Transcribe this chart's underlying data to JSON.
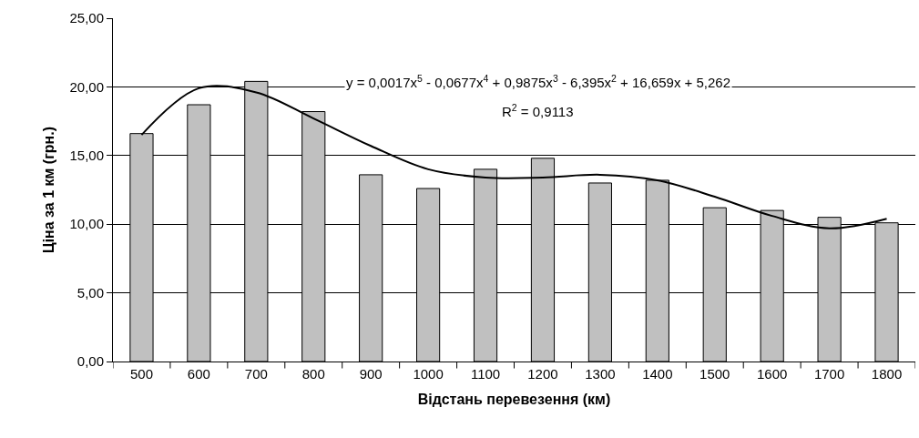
{
  "chart_data": {
    "type": "bar",
    "xlabel": "Відстань перевезення (км)",
    "ylabel": "Ціна за 1 км (грн.)",
    "categories": [
      "500",
      "600",
      "700",
      "800",
      "900",
      "1000",
      "1100",
      "1200",
      "1300",
      "1400",
      "1500",
      "1600",
      "1700",
      "1800"
    ],
    "series": [
      {
        "color": "#c0c0c0",
        "values": [
          16.6,
          18.7,
          20.4,
          18.2,
          13.6,
          12.6,
          14.0,
          14.8,
          13.0,
          13.2,
          11.2,
          11.0,
          10.5,
          10.1
        ]
      },
      {
        "type": "line",
        "color": "#000000",
        "marker": "none",
        "line_style": "solid",
        "values": [
          16.5,
          19.9,
          19.6,
          17.7,
          15.7,
          14.0,
          13.4,
          13.4,
          13.6,
          13.2,
          12.0,
          10.6,
          9.7,
          10.4
        ]
      }
    ],
    "ylim": [
      0,
      25
    ],
    "yticks": [
      {
        "value": 0,
        "label": "0,00"
      },
      {
        "value": 5,
        "label": "5,00"
      },
      {
        "value": 10,
        "label": "10,00"
      },
      {
        "value": 15,
        "label": "15,00"
      },
      {
        "value": 20,
        "label": "20,00"
      },
      {
        "value": 25,
        "label": "25,00"
      }
    ],
    "grid": "y",
    "legend": false,
    "annotations": [
      "y = 0,0017x$^{5}$ - 0,0677x$^{4}$ + 0,9875x$^{3}$ - 6,395x$^{2}$ + 16,659x + 5,262",
      "R$^{2}$ = 0,9113"
    ]
  }
}
